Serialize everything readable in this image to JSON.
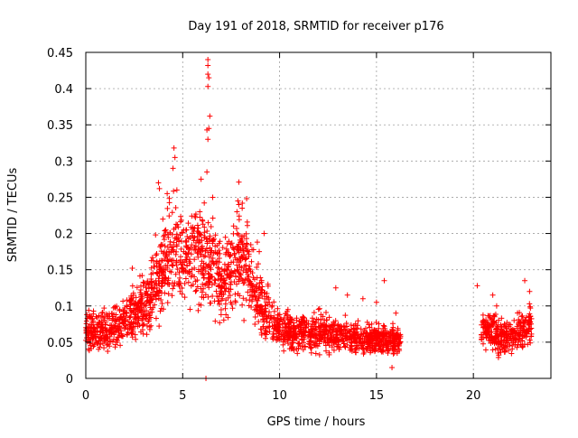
{
  "chart_data": {
    "type": "scatter",
    "title": "Day 191 of 2018, SRMTID for receiver p176",
    "xlabel": "GPS time / hours",
    "ylabel": "SRMTID / TECUs",
    "xlim": [
      0,
      24
    ],
    "ylim": [
      0,
      0.45
    ],
    "xticks": [
      0,
      5,
      10,
      15,
      20
    ],
    "xtick_labels": [
      "0",
      "5",
      "10",
      "15",
      "20"
    ],
    "yticks": [
      0,
      0.05,
      0.1,
      0.15,
      0.2,
      0.25,
      0.3,
      0.35,
      0.4,
      0.45
    ],
    "ytick_labels": [
      "0",
      "0.05",
      "0.1",
      "0.15",
      "0.2",
      "0.25",
      "0.3",
      "0.35",
      "0.4",
      "0.45"
    ],
    "grid": true,
    "marker": "+",
    "color": "#ff0000",
    "series": [
      {
        "name": "SRMTID",
        "segments": [
          {
            "x_start": 0.0,
            "x_end": 16.25,
            "trend": [
              [
                0.0,
                0.065
              ],
              [
                1.0,
                0.065
              ],
              [
                2.0,
                0.08
              ],
              [
                3.0,
                0.1
              ],
              [
                3.5,
                0.12
              ],
              [
                4.0,
                0.16
              ],
              [
                4.5,
                0.18
              ],
              [
                5.0,
                0.17
              ],
              [
                5.5,
                0.17
              ],
              [
                6.0,
                0.17
              ],
              [
                6.5,
                0.17
              ],
              [
                7.0,
                0.13
              ],
              [
                7.5,
                0.15
              ],
              [
                8.0,
                0.17
              ],
              [
                8.5,
                0.14
              ],
              [
                9.0,
                0.1
              ],
              [
                10.0,
                0.07
              ],
              [
                11.0,
                0.06
              ],
              [
                12.0,
                0.065
              ],
              [
                13.0,
                0.06
              ],
              [
                14.0,
                0.055
              ],
              [
                15.0,
                0.055
              ],
              [
                16.25,
                0.05
              ]
            ]
          },
          {
            "x_start": 20.4,
            "x_end": 23.0,
            "trend": [
              [
                20.4,
                0.07
              ],
              [
                21.0,
                0.065
              ],
              [
                21.5,
                0.055
              ],
              [
                22.0,
                0.06
              ],
              [
                22.5,
                0.065
              ],
              [
                23.0,
                0.075
              ]
            ]
          }
        ],
        "points": [
          [
            6.3,
            0.44
          ],
          [
            6.3,
            0.432
          ],
          [
            6.3,
            0.42
          ],
          [
            6.35,
            0.415
          ],
          [
            6.3,
            0.403
          ],
          [
            6.4,
            0.362
          ],
          [
            6.35,
            0.345
          ],
          [
            6.25,
            0.343
          ],
          [
            6.3,
            0.33
          ],
          [
            4.55,
            0.318
          ],
          [
            4.6,
            0.305
          ],
          [
            4.5,
            0.29
          ],
          [
            6.25,
            0.285
          ],
          [
            5.95,
            0.275
          ],
          [
            7.9,
            0.271
          ],
          [
            3.75,
            0.27
          ],
          [
            3.8,
            0.262
          ],
          [
            4.2,
            0.255
          ],
          [
            4.7,
            0.26
          ],
          [
            6.55,
            0.25
          ],
          [
            8.3,
            0.248
          ],
          [
            7.85,
            0.245
          ],
          [
            7.9,
            0.24
          ],
          [
            7.8,
            0.23
          ],
          [
            3.6,
            0.198
          ],
          [
            5.2,
            0.205
          ],
          [
            2.4,
            0.152
          ],
          [
            6.2,
            0.0
          ],
          [
            9.2,
            0.2
          ],
          [
            8.85,
            0.188
          ],
          [
            8.95,
            0.175
          ],
          [
            9.4,
            0.13
          ],
          [
            12.9,
            0.125
          ],
          [
            13.5,
            0.115
          ],
          [
            14.3,
            0.11
          ],
          [
            15.4,
            0.135
          ],
          [
            15.0,
            0.105
          ],
          [
            16.0,
            0.09
          ],
          [
            15.6,
            0.04
          ],
          [
            15.8,
            0.015
          ],
          [
            20.2,
            0.128
          ],
          [
            21.0,
            0.115
          ],
          [
            22.65,
            0.135
          ],
          [
            22.9,
            0.12
          ],
          [
            21.2,
            0.1
          ],
          [
            22.1,
            0.08
          ]
        ]
      }
    ]
  }
}
